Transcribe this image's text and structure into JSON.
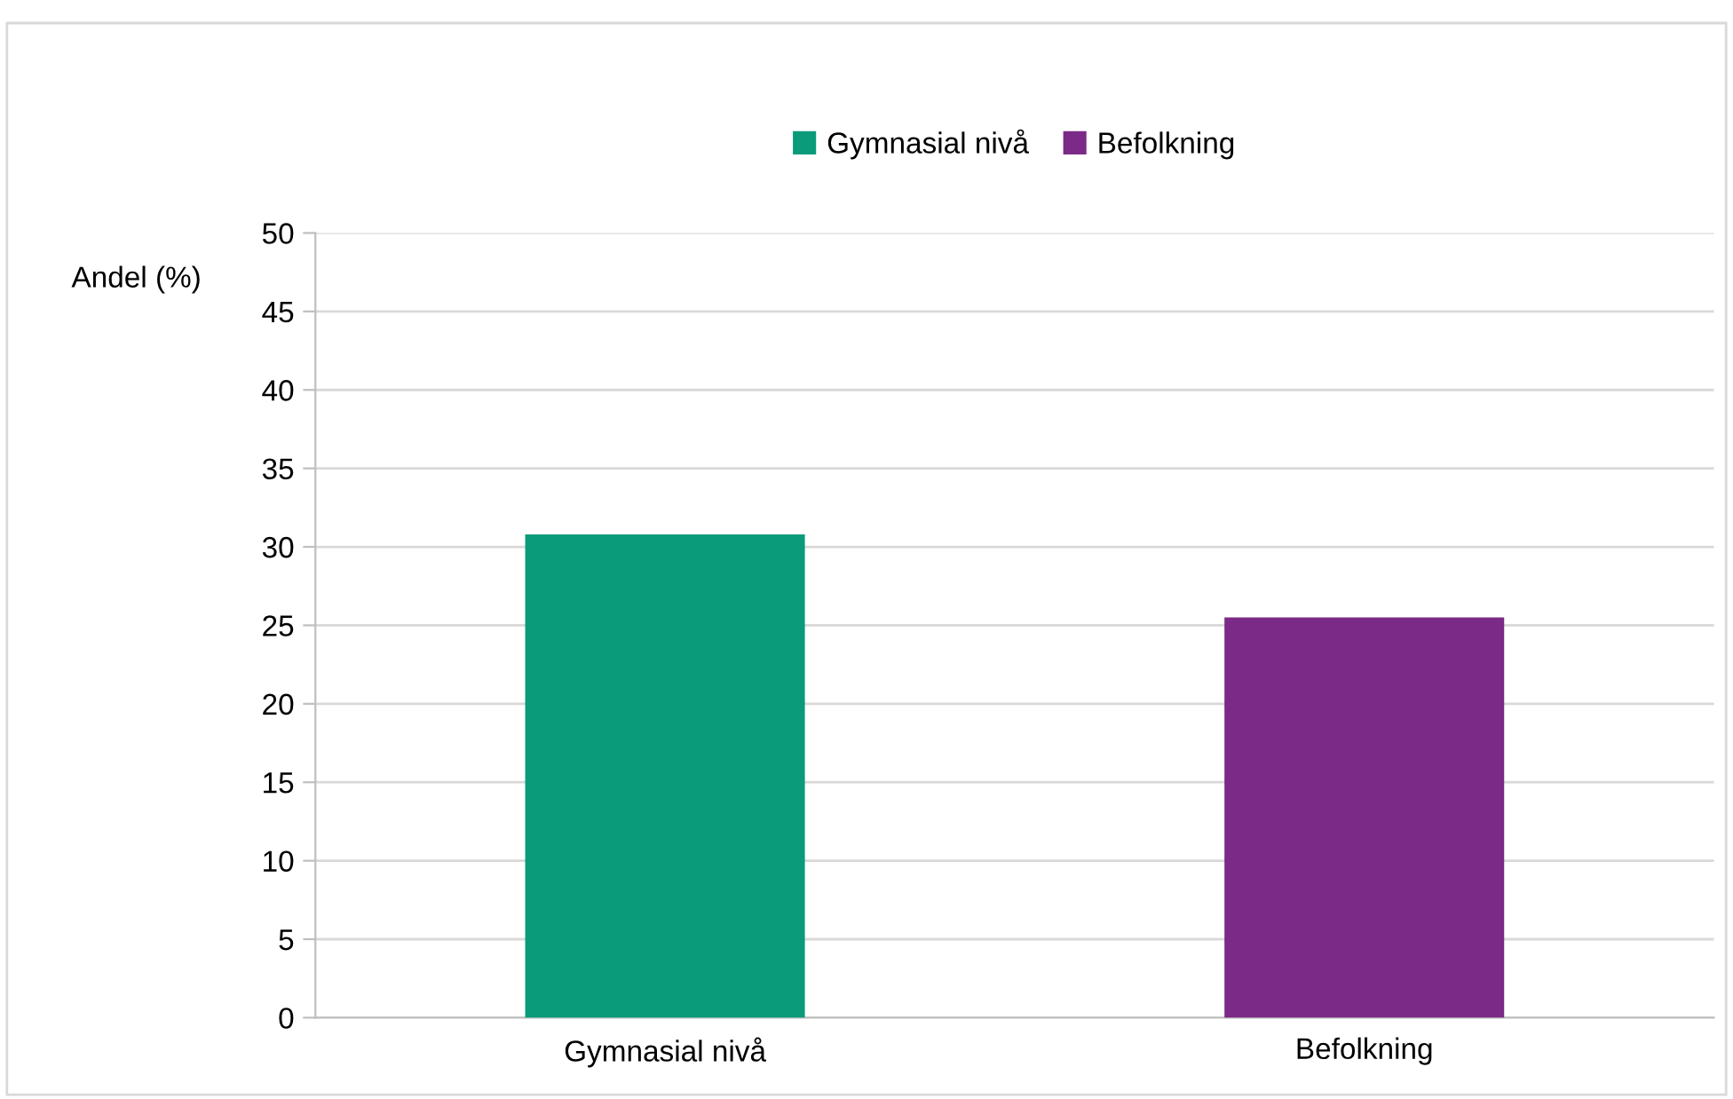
{
  "chart_data": {
    "type": "bar",
    "ylabel": "Andel (%)",
    "categories": [
      "Gymnasial nivå",
      "Befolkning"
    ],
    "series": [
      {
        "name": "Gymnasial nivå",
        "color": "#0a9b7a",
        "values": [
          30.8,
          null
        ]
      },
      {
        "name": "Befolkning",
        "color": "#7b2a87",
        "values": [
          null,
          25.5
        ]
      }
    ],
    "ylim": [
      0,
      50
    ],
    "yticks": [
      0,
      5,
      10,
      15,
      20,
      25,
      30,
      35,
      40,
      45,
      50
    ],
    "grid": "y",
    "legend": "top"
  }
}
